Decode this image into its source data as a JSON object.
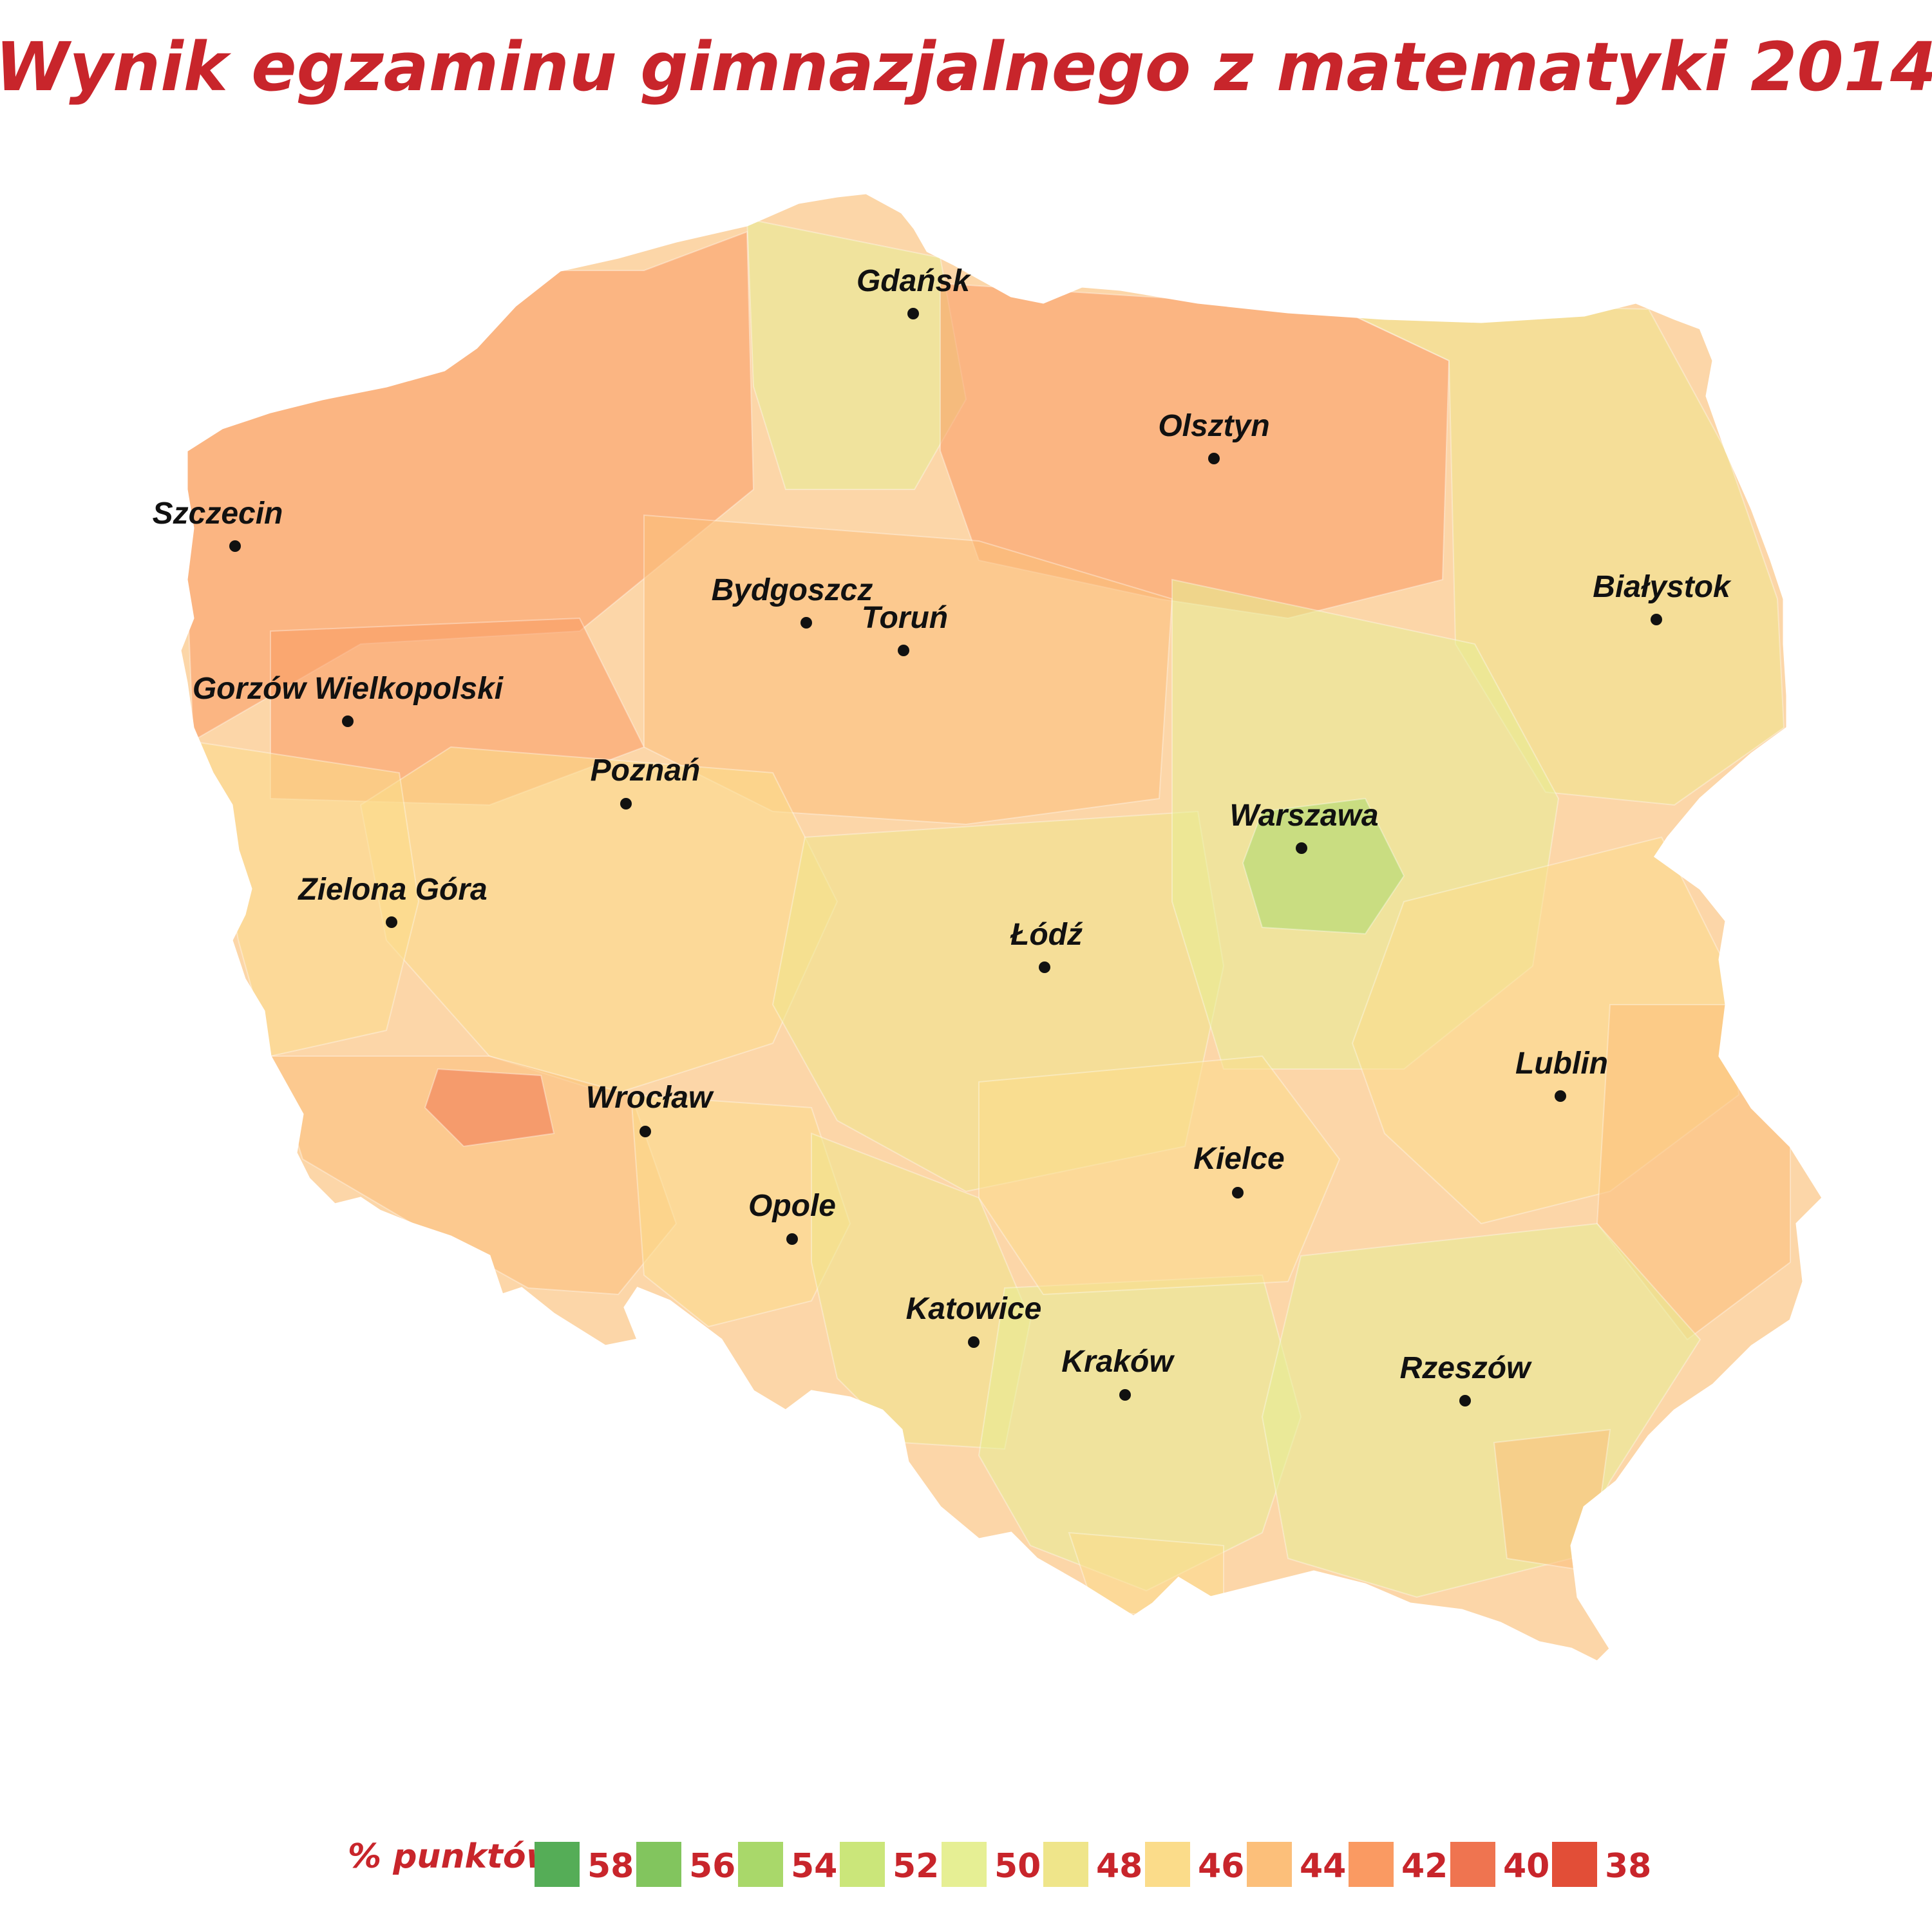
{
  "title": "Wynik egzaminu gimnazjalnego z matematyki 2014",
  "colors": {
    "title": "#c8252b",
    "text_city": "#111111",
    "border": "#ffffff"
  },
  "cities": [
    {
      "name": "Gdańsk"
    },
    {
      "name": "Olsztyn"
    },
    {
      "name": "Szczecin"
    },
    {
      "name": "Białystok"
    },
    {
      "name": "Bydgoszcz"
    },
    {
      "name": "Toruń"
    },
    {
      "name": "Gorzów Wielkopolski"
    },
    {
      "name": "Poznań"
    },
    {
      "name": "Warszawa"
    },
    {
      "name": "Zielona Góra"
    },
    {
      "name": "Łódź"
    },
    {
      "name": "Lublin"
    },
    {
      "name": "Wrocław"
    },
    {
      "name": "Kielce"
    },
    {
      "name": "Opole"
    },
    {
      "name": "Katowice"
    },
    {
      "name": "Kraków"
    },
    {
      "name": "Rzeszów"
    }
  ],
  "legend": {
    "label": "% punktów",
    "items": [
      {
        "value": "58",
        "color": "#55ad57"
      },
      {
        "value": "56",
        "color": "#82c55e"
      },
      {
        "value": "54",
        "color": "#a9d86a"
      },
      {
        "value": "52",
        "color": "#cbe67a"
      },
      {
        "value": "50",
        "color": "#e6ef94"
      },
      {
        "value": "48",
        "color": "#efe58a"
      },
      {
        "value": "46",
        "color": "#fbdc8a"
      },
      {
        "value": "44",
        "color": "#fcbf7a"
      },
      {
        "value": "42",
        "color": "#fa9a62"
      },
      {
        "value": "40",
        "color": "#ef7450"
      },
      {
        "value": "38",
        "color": "#e24e37"
      }
    ]
  },
  "regions": [
    {
      "name": "north-west",
      "value": 41
    },
    {
      "name": "pomerania-west",
      "value": 42
    },
    {
      "name": "gdansk-area",
      "value": 49
    },
    {
      "name": "warmia-mazury",
      "value": 42
    },
    {
      "name": "podlasie-north",
      "value": 48
    },
    {
      "name": "kujawy",
      "value": 43
    },
    {
      "name": "wielkopolska",
      "value": 45
    },
    {
      "name": "lubuskie",
      "value": 46
    },
    {
      "name": "lodzkie",
      "value": 47
    },
    {
      "name": "mazowsze",
      "value": 49
    },
    {
      "name": "mazowsze-warsaw",
      "value": 54
    },
    {
      "name": "lower-silesia",
      "value": 43
    },
    {
      "name": "legnica-lubin",
      "value": 39
    },
    {
      "name": "opolskie",
      "value": 46
    },
    {
      "name": "silesia",
      "value": 48
    },
    {
      "name": "malopolska",
      "value": 50
    },
    {
      "name": "swietokrzyskie",
      "value": 46
    },
    {
      "name": "lubelskie",
      "value": 45
    },
    {
      "name": "lublin-east",
      "value": 43
    },
    {
      "name": "podkarpacie",
      "value": 50
    },
    {
      "name": "bieszczady",
      "value": 43
    },
    {
      "name": "tatry",
      "value": 46
    }
  ]
}
